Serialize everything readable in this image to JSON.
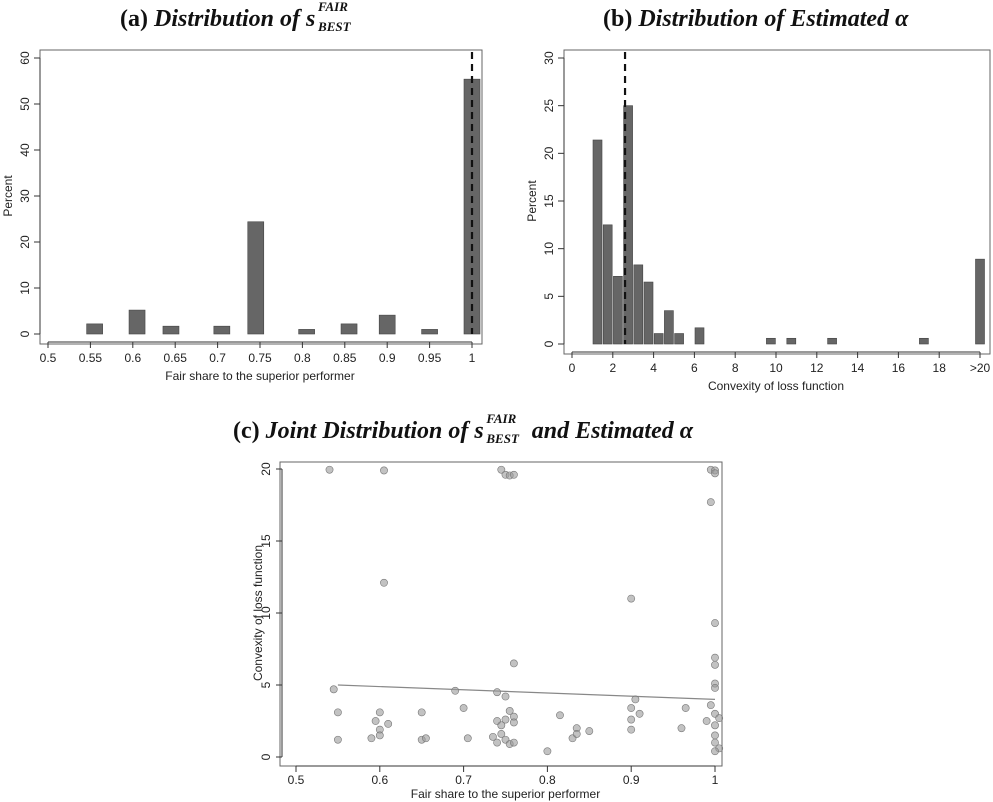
{
  "colors": {
    "bar": "#666666",
    "axis": "#333333",
    "point": "#9a9a9a",
    "fit": "#888888"
  },
  "panels": {
    "a": {
      "prefix": "(a)",
      "title_text": "Distribution of ",
      "var": "s",
      "sup": "FAIR",
      "sub": "BEST"
    },
    "b": {
      "prefix": "(b)",
      "title_text": "Distribution of Estimated ",
      "greek": "α"
    },
    "c": {
      "prefix": "(c)",
      "title_text": "Joint Distribution of ",
      "var": "s",
      "sup": "FAIR",
      "sub": "BEST",
      "title_tail": " and Estimated ",
      "greek": "α"
    }
  },
  "chart_data": [
    {
      "type": "bar",
      "title": "(a) Distribution of s_BEST^FAIR",
      "xlabel": "Fair share to the superior performer",
      "ylabel": "Percent",
      "xlim": [
        0.5,
        1.0
      ],
      "ylim": [
        0,
        60
      ],
      "x_ticks": [
        "0.5",
        "0.55",
        "0.6",
        "0.65",
        "0.7",
        "0.75",
        "0.8",
        "0.85",
        "0.9",
        "0.95",
        "1"
      ],
      "y_ticks": [
        "0",
        "10",
        "20",
        "30",
        "40",
        "50",
        "60"
      ],
      "bars": [
        {
          "x": 0.555,
          "value": 2.2
        },
        {
          "x": 0.605,
          "value": 5.2
        },
        {
          "x": 0.645,
          "value": 1.7
        },
        {
          "x": 0.705,
          "value": 1.7
        },
        {
          "x": 0.745,
          "value": 24.4
        },
        {
          "x": 0.805,
          "value": 1.0
        },
        {
          "x": 0.855,
          "value": 2.2
        },
        {
          "x": 0.9,
          "value": 4.1
        },
        {
          "x": 0.95,
          "value": 1.0
        },
        {
          "x": 1.0,
          "value": 55.4
        }
      ],
      "reference_line_x": 1.0
    },
    {
      "type": "bar",
      "title": "(b) Distribution of Estimated α",
      "xlabel": "Convexity of loss function",
      "ylabel": "Percent",
      "xlim": [
        0,
        20
      ],
      "ylim": [
        0,
        30
      ],
      "x_ticks": [
        "0",
        "2",
        "4",
        "6",
        "8",
        "10",
        "12",
        "14",
        "16",
        "18",
        ">20"
      ],
      "y_ticks": [
        "0",
        "5",
        "10",
        "15",
        "20",
        "25",
        "30"
      ],
      "bars": [
        {
          "x": 1.25,
          "value": 21.4
        },
        {
          "x": 1.75,
          "value": 12.5
        },
        {
          "x": 2.25,
          "value": 7.1
        },
        {
          "x": 2.75,
          "value": 25.0
        },
        {
          "x": 3.25,
          "value": 8.3
        },
        {
          "x": 3.75,
          "value": 6.5
        },
        {
          "x": 4.25,
          "value": 1.1
        },
        {
          "x": 4.75,
          "value": 3.5
        },
        {
          "x": 5.25,
          "value": 1.1
        },
        {
          "x": 6.25,
          "value": 1.7
        },
        {
          "x": 9.75,
          "value": 0.6
        },
        {
          "x": 10.75,
          "value": 0.6
        },
        {
          "x": 12.75,
          "value": 0.6
        },
        {
          "x": 17.25,
          "value": 0.6
        },
        {
          "x": 20.0,
          "value": 8.9
        }
      ],
      "reference_line_x": 2.6
    },
    {
      "type": "scatter",
      "title": "(c) Joint Distribution of s_BEST^FAIR and Estimated α",
      "xlabel": "Fair share to the superior performer",
      "ylabel": "Convexity of loss function",
      "xlim": [
        0.5,
        1.0
      ],
      "ylim": [
        0,
        20
      ],
      "x_ticks": [
        "0.5",
        "0.6",
        "0.7",
        "0.8",
        "0.9",
        "1"
      ],
      "y_ticks": [
        "0",
        "5",
        "10",
        "15",
        "20"
      ],
      "fit_line": {
        "x": [
          0.55,
          1.0
        ],
        "y": [
          5.0,
          4.0
        ]
      },
      "points": [
        [
          0.54,
          19.95
        ],
        [
          0.605,
          19.9
        ],
        [
          0.745,
          19.95
        ],
        [
          0.75,
          19.6
        ],
        [
          0.755,
          19.55
        ],
        [
          0.76,
          19.6
        ],
        [
          0.995,
          19.95
        ],
        [
          1.0,
          19.9
        ],
        [
          1.0,
          19.7
        ],
        [
          0.995,
          17.7
        ],
        [
          0.605,
          12.1
        ],
        [
          0.9,
          11.0
        ],
        [
          1.0,
          9.3
        ],
        [
          1.0,
          6.9
        ],
        [
          1.0,
          6.4
        ],
        [
          0.76,
          6.5
        ],
        [
          0.545,
          4.7
        ],
        [
          0.69,
          4.6
        ],
        [
          0.74,
          4.5
        ],
        [
          0.75,
          4.2
        ],
        [
          0.905,
          4.0
        ],
        [
          1.0,
          5.1
        ],
        [
          1.0,
          4.8
        ],
        [
          0.55,
          3.1
        ],
        [
          0.6,
          3.1
        ],
        [
          0.65,
          3.1
        ],
        [
          0.7,
          3.4
        ],
        [
          0.755,
          3.2
        ],
        [
          0.76,
          2.8
        ],
        [
          0.815,
          2.9
        ],
        [
          0.9,
          3.4
        ],
        [
          0.91,
          3.0
        ],
        [
          0.965,
          3.4
        ],
        [
          0.995,
          3.6
        ],
        [
          1.0,
          3.0
        ],
        [
          0.595,
          2.5
        ],
        [
          0.6,
          1.9
        ],
        [
          0.61,
          2.3
        ],
        [
          0.74,
          2.5
        ],
        [
          0.745,
          2.2
        ],
        [
          0.75,
          2.6
        ],
        [
          0.76,
          2.4
        ],
        [
          0.835,
          2.0
        ],
        [
          0.9,
          2.6
        ],
        [
          0.96,
          2.0
        ],
        [
          0.99,
          2.5
        ],
        [
          1.0,
          2.2
        ],
        [
          1.005,
          2.7
        ],
        [
          0.55,
          1.2
        ],
        [
          0.59,
          1.3
        ],
        [
          0.6,
          1.5
        ],
        [
          0.65,
          1.2
        ],
        [
          0.655,
          1.3
        ],
        [
          0.705,
          1.3
        ],
        [
          0.735,
          1.4
        ],
        [
          0.74,
          1.0
        ],
        [
          0.745,
          1.6
        ],
        [
          0.75,
          1.2
        ],
        [
          0.755,
          0.9
        ],
        [
          0.76,
          1.0
        ],
        [
          0.83,
          1.3
        ],
        [
          0.835,
          1.6
        ],
        [
          0.85,
          1.8
        ],
        [
          0.9,
          1.9
        ],
        [
          1.0,
          1.5
        ],
        [
          1.0,
          1.0
        ],
        [
          1.005,
          0.6
        ],
        [
          0.8,
          0.4
        ],
        [
          1.0,
          0.4
        ]
      ]
    }
  ]
}
